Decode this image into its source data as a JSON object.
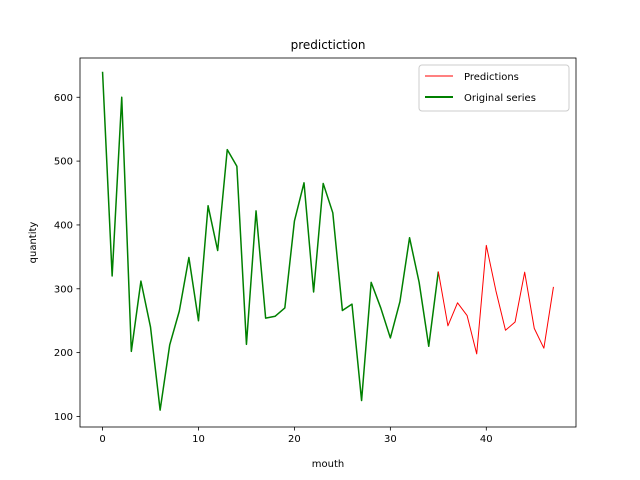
{
  "chart_data": {
    "type": "line",
    "title": "predictiction",
    "xlabel": "mouth",
    "ylabel": "quantity",
    "xlim": [
      -2.35,
      49.35
    ],
    "ylim": [
      83.5,
      661.5
    ],
    "xticks": [
      0,
      10,
      20,
      30,
      40
    ],
    "yticks": [
      100,
      200,
      300,
      400,
      500,
      600
    ],
    "grid": false,
    "legend_position": "top-right",
    "series": [
      {
        "name": "Predictions",
        "color": "#ff0000",
        "x": [
          35,
          36,
          37,
          38,
          39,
          40,
          41,
          42,
          43,
          44,
          45,
          46,
          47
        ],
        "y": [
          327,
          242,
          278,
          258,
          198,
          368,
          297,
          235,
          248,
          326,
          238,
          207,
          303
        ]
      },
      {
        "name": "Original series",
        "color": "#008000",
        "x": [
          0,
          1,
          2,
          3,
          4,
          5,
          6,
          7,
          8,
          9,
          10,
          11,
          12,
          13,
          14,
          15,
          16,
          17,
          18,
          19,
          20,
          21,
          22,
          23,
          24,
          25,
          26,
          27,
          28,
          29,
          30,
          31,
          32,
          33,
          34,
          35
        ],
        "y": [
          640,
          320,
          600,
          202,
          312,
          240,
          110,
          212,
          265,
          349,
          250,
          430,
          360,
          518,
          492,
          213,
          422,
          254,
          257,
          270,
          406,
          466,
          295,
          465,
          419,
          266,
          276,
          125,
          310,
          270,
          223,
          280,
          380,
          310,
          210,
          327
        ]
      }
    ]
  }
}
